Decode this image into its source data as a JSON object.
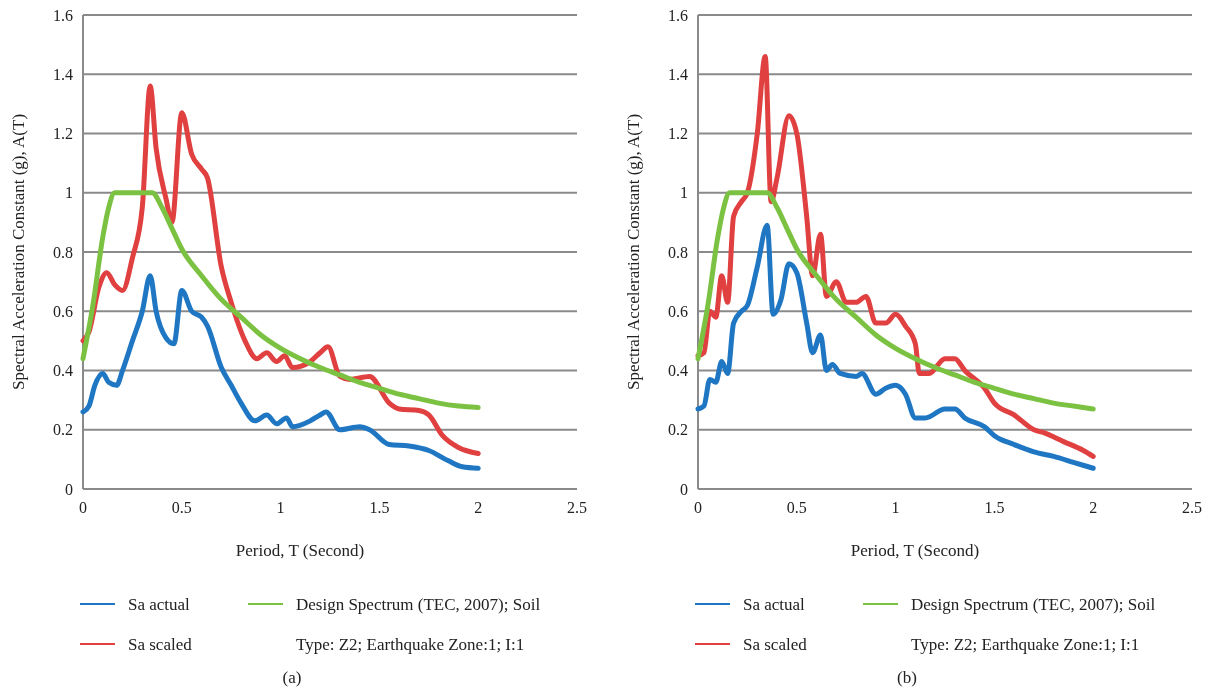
{
  "chart_data": [
    {
      "type": "line",
      "xlabel": "Period, T (Second)",
      "ylabel": "Spectral Acceleration Constant (g), A(T)",
      "xlim": [
        0,
        2.5
      ],
      "xticks": [
        0,
        0.5,
        1,
        1.5,
        2,
        2.5
      ],
      "ylim": [
        0,
        1.6
      ],
      "yticks": [
        0,
        0.2,
        0.4,
        0.6,
        0.8,
        1,
        1.2,
        1.4,
        1.6
      ],
      "grid": "y",
      "legend": "bottom",
      "annotations": [
        "(a)"
      ],
      "series": [
        {
          "name": "Sa actual",
          "color": "#1f77c4",
          "x": [
            0,
            0.03,
            0.06,
            0.1,
            0.13,
            0.17,
            0.2,
            0.25,
            0.3,
            0.34,
            0.37,
            0.42,
            0.46,
            0.5,
            0.55,
            0.6,
            0.63,
            0.7,
            0.75,
            0.8,
            0.87,
            0.93,
            0.98,
            1.03,
            1.06,
            1.15,
            1.2,
            1.23,
            1.3,
            1.4,
            1.45,
            1.55,
            1.65,
            1.75,
            1.85,
            1.92,
            2
          ],
          "values": [
            0.26,
            0.28,
            0.35,
            0.39,
            0.36,
            0.35,
            0.4,
            0.5,
            0.6,
            0.72,
            0.6,
            0.51,
            0.49,
            0.67,
            0.6,
            0.58,
            0.55,
            0.41,
            0.35,
            0.29,
            0.23,
            0.25,
            0.22,
            0.24,
            0.21,
            0.23,
            0.25,
            0.26,
            0.2,
            0.21,
            0.2,
            0.15,
            0.145,
            0.13,
            0.095,
            0.075,
            0.07
          ]
        },
        {
          "name": "Sa scaled",
          "color": "#e04040",
          "x": [
            0,
            0.03,
            0.08,
            0.12,
            0.16,
            0.2,
            0.25,
            0.3,
            0.34,
            0.37,
            0.42,
            0.45,
            0.5,
            0.55,
            0.6,
            0.63,
            0.7,
            0.75,
            0.82,
            0.88,
            0.93,
            0.98,
            1.02,
            1.06,
            1.15,
            1.2,
            1.24,
            1.3,
            1.35,
            1.45,
            1.55,
            1.6,
            1.7,
            1.75,
            1.82,
            1.9,
            2
          ],
          "values": [
            0.5,
            0.53,
            0.68,
            0.73,
            0.69,
            0.67,
            0.78,
            0.95,
            1.36,
            1.15,
            0.98,
            0.9,
            1.27,
            1.13,
            1.08,
            1.05,
            0.75,
            0.63,
            0.5,
            0.44,
            0.46,
            0.43,
            0.45,
            0.41,
            0.43,
            0.46,
            0.48,
            0.38,
            0.37,
            0.38,
            0.29,
            0.27,
            0.265,
            0.25,
            0.18,
            0.14,
            0.12
          ]
        },
        {
          "name": "Design Spectrum (TEC, 2007); Soil Type: Z2; Earthquake Zone:1; I:1",
          "color": "#7cc242",
          "x": [
            0,
            0.05,
            0.1,
            0.13,
            0.16,
            0.2,
            0.35,
            0.4,
            0.45,
            0.5,
            0.6,
            0.7,
            0.8,
            0.9,
            1,
            1.1,
            1.2,
            1.3,
            1.4,
            1.5,
            1.6,
            1.7,
            1.8,
            1.9,
            2
          ],
          "values": [
            0.44,
            0.62,
            0.85,
            0.95,
            1,
            1,
            1,
            0.95,
            0.88,
            0.81,
            0.72,
            0.64,
            0.58,
            0.52,
            0.475,
            0.44,
            0.41,
            0.385,
            0.36,
            0.34,
            0.32,
            0.305,
            0.29,
            0.28,
            0.275
          ]
        }
      ]
    },
    {
      "type": "line",
      "xlabel": "Period, T (Second)",
      "ylabel": "Spectral Acceleration Constant (g), A(T)",
      "xlim": [
        0,
        2.5
      ],
      "xticks": [
        0,
        0.5,
        1,
        1.5,
        2,
        2.5
      ],
      "ylim": [
        0,
        1.6
      ],
      "yticks": [
        0,
        0.2,
        0.4,
        0.6,
        0.8,
        1,
        1.2,
        1.4,
        1.6
      ],
      "grid": "y",
      "legend": "bottom",
      "annotations": [
        "(b)"
      ],
      "series": [
        {
          "name": "Sa actual",
          "color": "#1f77c4",
          "x": [
            0,
            0.03,
            0.06,
            0.09,
            0.12,
            0.15,
            0.18,
            0.22,
            0.25,
            0.3,
            0.35,
            0.38,
            0.42,
            0.46,
            0.5,
            0.55,
            0.58,
            0.62,
            0.65,
            0.68,
            0.72,
            0.8,
            0.83,
            0.9,
            0.95,
            1,
            1.05,
            1.1,
            1.15,
            1.25,
            1.3,
            1.35,
            1.45,
            1.5,
            1.6,
            1.7,
            1.8,
            1.9,
            2
          ],
          "values": [
            0.27,
            0.28,
            0.37,
            0.36,
            0.43,
            0.39,
            0.56,
            0.6,
            0.62,
            0.75,
            0.89,
            0.59,
            0.64,
            0.76,
            0.73,
            0.56,
            0.46,
            0.52,
            0.4,
            0.42,
            0.39,
            0.38,
            0.39,
            0.32,
            0.34,
            0.35,
            0.32,
            0.24,
            0.24,
            0.27,
            0.27,
            0.24,
            0.21,
            0.18,
            0.15,
            0.125,
            0.11,
            0.09,
            0.07
          ]
        },
        {
          "name": "Sa scaled",
          "color": "#e04040",
          "x": [
            0,
            0.03,
            0.06,
            0.09,
            0.12,
            0.15,
            0.18,
            0.22,
            0.25,
            0.3,
            0.34,
            0.37,
            0.4,
            0.46,
            0.5,
            0.55,
            0.58,
            0.62,
            0.65,
            0.7,
            0.75,
            0.8,
            0.85,
            0.9,
            0.95,
            1,
            1.05,
            1.1,
            1.12,
            1.17,
            1.25,
            1.3,
            1.35,
            1.45,
            1.5,
            1.6,
            1.7,
            1.75,
            1.85,
            1.95,
            2
          ],
          "values": [
            0.45,
            0.46,
            0.6,
            0.58,
            0.72,
            0.63,
            0.92,
            0.97,
            1,
            1.2,
            1.46,
            0.97,
            1.05,
            1.26,
            1.2,
            0.92,
            0.72,
            0.86,
            0.65,
            0.7,
            0.63,
            0.63,
            0.65,
            0.56,
            0.56,
            0.59,
            0.55,
            0.49,
            0.39,
            0.39,
            0.44,
            0.44,
            0.4,
            0.34,
            0.29,
            0.25,
            0.2,
            0.19,
            0.16,
            0.13,
            0.11
          ]
        },
        {
          "name": "Design Spectrum (TEC, 2007); Soil Type: Z2; Earthquake Zone:1; I:1",
          "color": "#7cc242",
          "x": [
            0,
            0.05,
            0.1,
            0.13,
            0.16,
            0.2,
            0.35,
            0.4,
            0.45,
            0.5,
            0.6,
            0.7,
            0.8,
            0.9,
            1,
            1.1,
            1.2,
            1.3,
            1.4,
            1.5,
            1.6,
            1.7,
            1.8,
            1.9,
            2
          ],
          "values": [
            0.44,
            0.62,
            0.85,
            0.95,
            1,
            1,
            1,
            0.95,
            0.88,
            0.81,
            0.72,
            0.64,
            0.58,
            0.52,
            0.475,
            0.44,
            0.41,
            0.385,
            0.36,
            0.34,
            0.32,
            0.305,
            0.29,
            0.28,
            0.27
          ]
        }
      ]
    }
  ]
}
